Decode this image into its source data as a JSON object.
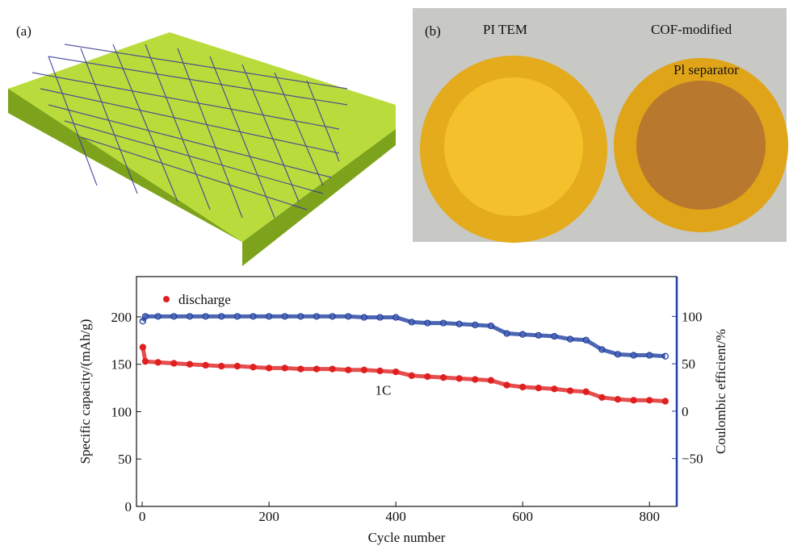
{
  "panels": {
    "a": {
      "label": "(a)"
    },
    "b": {
      "label": "(b)",
      "left": "PI TEM",
      "right_line1": "COF-modified",
      "right_line2": "Pl separator"
    }
  },
  "chart_data": {
    "type": "scatter",
    "x_label": "Cycle number",
    "y_label": "Specific capacity/(mAh/g)",
    "y2_label": "Coulombic efficient/%",
    "annotation": "1C",
    "x": [
      1,
      5,
      25,
      50,
      75,
      100,
      125,
      150,
      175,
      200,
      225,
      250,
      275,
      300,
      325,
      350,
      375,
      400,
      425,
      450,
      475,
      500,
      525,
      550,
      575,
      600,
      625,
      650,
      675,
      700,
      725,
      750,
      775,
      800,
      825
    ],
    "series": [
      {
        "name": "discharge",
        "color": "#e02020",
        "marker": "filled",
        "values": [
          168,
          153,
          152,
          151,
          150,
          149,
          148,
          148,
          147,
          146,
          146,
          145,
          145,
          145,
          144,
          144,
          143,
          142,
          138,
          137,
          136,
          135,
          134,
          133,
          128,
          126,
          125,
          124,
          122,
          121,
          115,
          113,
          112,
          112,
          111
        ]
      },
      {
        "color": "#2040a0",
        "marker": "open",
        "axis": "y2",
        "values": [
          95,
          100,
          100,
          100,
          100,
          100,
          100,
          100,
          100,
          100,
          100,
          100,
          100,
          100,
          100,
          99,
          99,
          99,
          94,
          93,
          93,
          92,
          91,
          90,
          82,
          81,
          80,
          79,
          76,
          75,
          65,
          60,
          59,
          59,
          58
        ]
      }
    ],
    "xlim": [
      -9,
      843
    ],
    "xticks": [
      0,
      200,
      400,
      600,
      800
    ],
    "ylim": [
      0,
      242.5
    ],
    "yticks": [
      0,
      50,
      100,
      150,
      200
    ],
    "y2lim": [
      -100.5,
      142
    ],
    "y2ticks": [
      {
        "value": -50,
        "label": "−50"
      },
      0,
      50,
      100
    ],
    "y2_color": "#2040a0",
    "legend": "upper left"
  }
}
